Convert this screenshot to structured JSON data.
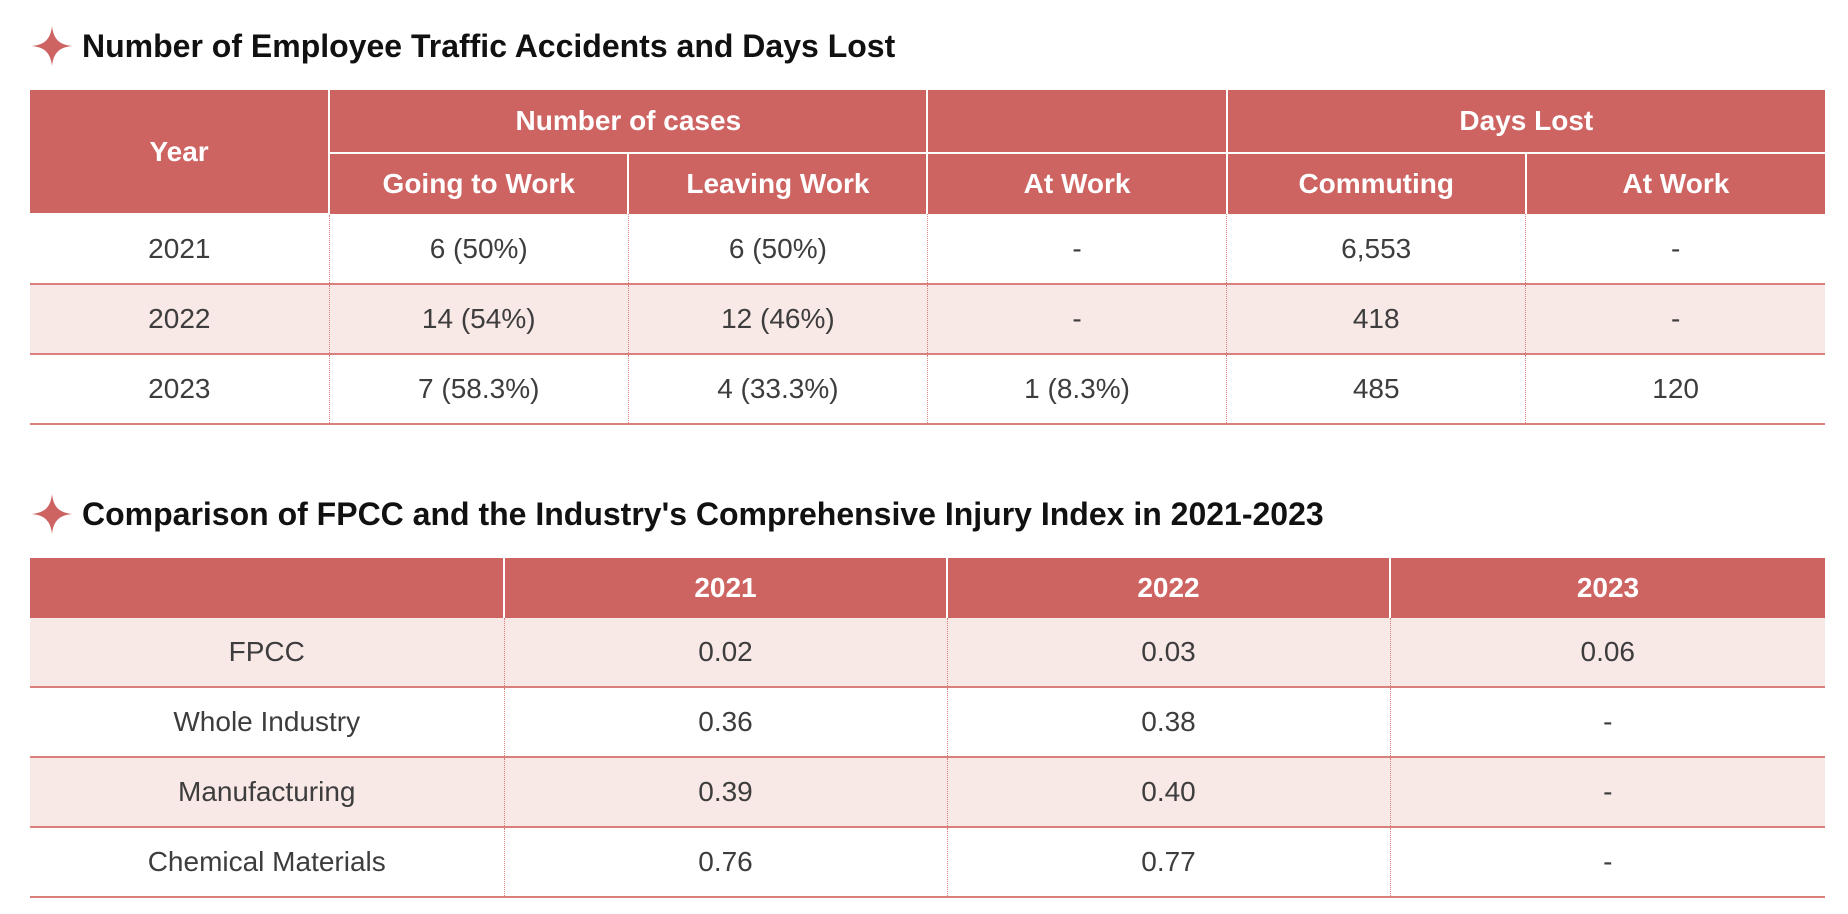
{
  "section1": {
    "title": "Number of Employee Traffic Accidents and Days Lost",
    "icon": "four-point-star-icon",
    "accent_color": "#cd6462",
    "header": {
      "year": "Year",
      "number_of_cases": "Number of cases",
      "blank_group": "",
      "days_lost": "Days Lost",
      "going_to_work": "Going to Work",
      "leaving_work": "Leaving Work",
      "at_work": "At Work",
      "commuting": "Commuting",
      "days_at_work": "At Work"
    },
    "rows": [
      {
        "year": "2021",
        "going": "6 (50%)",
        "leaving": "6 (50%)",
        "at_work": "-",
        "commuting": "6,553",
        "days_at_work": "-"
      },
      {
        "year": "2022",
        "going": "14 (54%)",
        "leaving": "12 (46%)",
        "at_work": "-",
        "commuting": "418",
        "days_at_work": "-"
      },
      {
        "year": "2023",
        "going": "7 (58.3%)",
        "leaving": "4 (33.3%)",
        "at_work": "1 (8.3%)",
        "commuting": "485",
        "days_at_work": "120"
      }
    ]
  },
  "section2": {
    "title": "Comparison of FPCC and the Industry's Comprehensive Injury Index in 2021-2023",
    "icon": "four-point-star-icon",
    "header": {
      "blank": "",
      "y2021": "2021",
      "y2022": "2022",
      "y2023": "2023"
    },
    "rows": [
      {
        "label": "FPCC",
        "y2021": "0.02",
        "y2022": "0.03",
        "y2023": "0.06"
      },
      {
        "label": "Whole Industry",
        "y2021": "0.36",
        "y2022": "0.38",
        "y2023": "-"
      },
      {
        "label": "Manufacturing",
        "y2021": "0.39",
        "y2022": "0.40",
        "y2023": "-"
      },
      {
        "label": "Chemical Materials",
        "y2021": "0.76",
        "y2022": "0.77",
        "y2023": "-"
      }
    ]
  }
}
